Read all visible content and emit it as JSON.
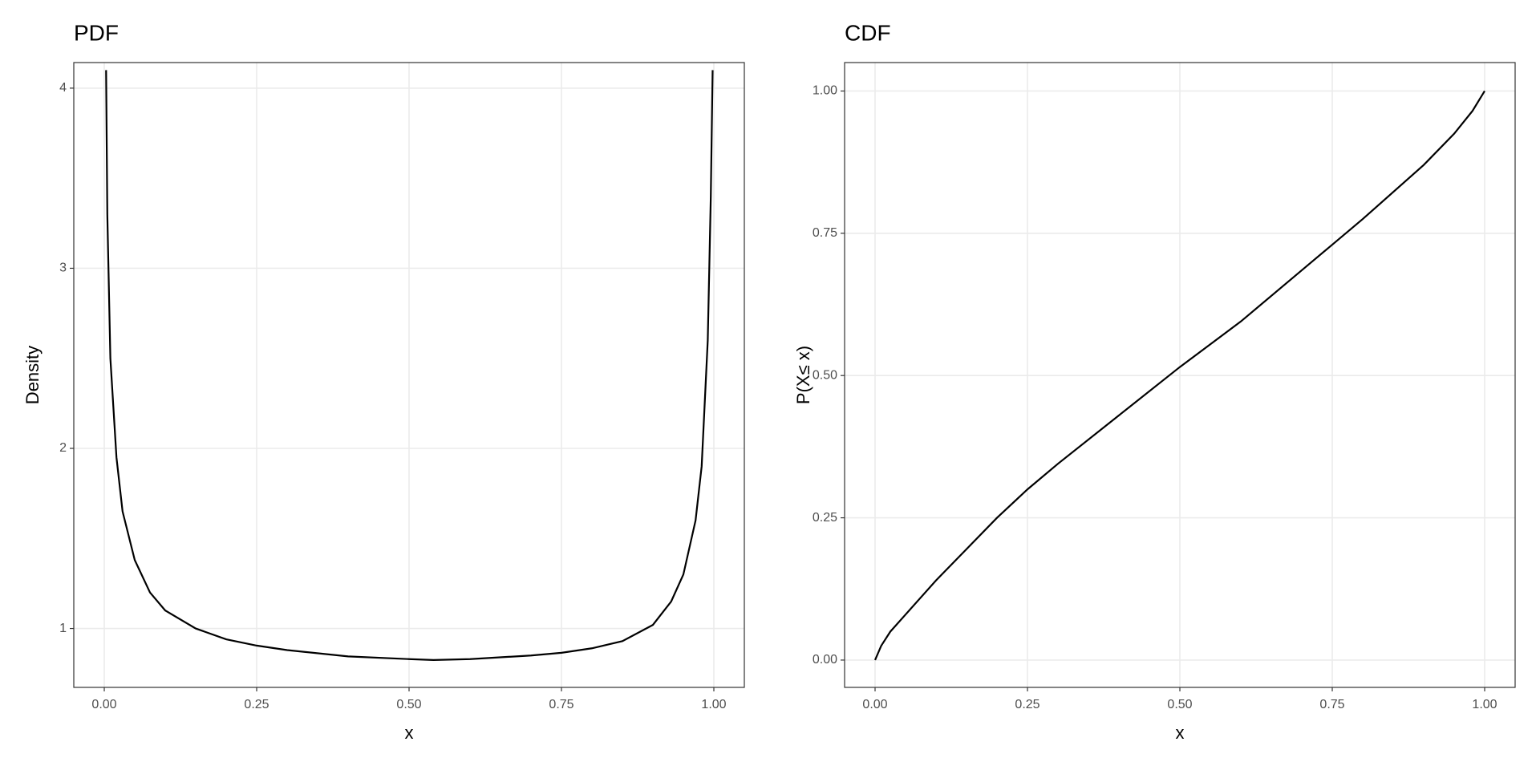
{
  "chart_data": [
    {
      "type": "line",
      "title": "PDF",
      "x_label": "x",
      "y_label": "Density",
      "xlim": [
        -0.05,
        1.05
      ],
      "ylim": [
        0.673,
        4.142
      ],
      "xticks": [
        {
          "value": 0,
          "label": "0.00"
        },
        {
          "value": 0.25,
          "label": "0.25"
        },
        {
          "value": 0.5,
          "label": "0.50"
        },
        {
          "value": 0.75,
          "label": "0.75"
        },
        {
          "value": 1,
          "label": "1.00"
        }
      ],
      "yticks": [
        1,
        2,
        3,
        4
      ],
      "grid": true,
      "color": "#000000",
      "x": [
        0.003,
        0.005,
        0.01,
        0.02,
        0.03,
        0.05,
        0.075,
        0.1,
        0.15,
        0.2,
        0.25,
        0.3,
        0.4,
        0.5,
        0.54,
        0.6,
        0.7,
        0.75,
        0.8,
        0.85,
        0.9,
        0.93,
        0.95,
        0.97,
        0.98,
        0.99,
        0.995,
        0.998
      ],
      "values": [
        4.1,
        3.3,
        2.5,
        1.95,
        1.65,
        1.38,
        1.2,
        1.1,
        1.0,
        0.94,
        0.905,
        0.88,
        0.845,
        0.83,
        0.825,
        0.83,
        0.85,
        0.865,
        0.89,
        0.93,
        1.02,
        1.15,
        1.3,
        1.6,
        1.9,
        2.6,
        3.4,
        4.1
      ]
    },
    {
      "type": "line",
      "title": "CDF",
      "x_label": "x",
      "y_label": "P(X≤ x)",
      "xlim": [
        -0.05,
        1.05
      ],
      "ylim": [
        -0.048,
        1.05
      ],
      "xticks": [
        {
          "value": 0,
          "label": "0.00"
        },
        {
          "value": 0.25,
          "label": "0.25"
        },
        {
          "value": 0.5,
          "label": "0.50"
        },
        {
          "value": 0.75,
          "label": "0.75"
        },
        {
          "value": 1,
          "label": "1.00"
        }
      ],
      "yticks": [
        {
          "value": 0,
          "label": "0.00"
        },
        {
          "value": 0.25,
          "label": "0.25"
        },
        {
          "value": 0.5,
          "label": "0.50"
        },
        {
          "value": 0.75,
          "label": "0.75"
        },
        {
          "value": 1,
          "label": "1.00"
        }
      ],
      "grid": true,
      "color": "#000000",
      "x": [
        0,
        0.01,
        0.025,
        0.05,
        0.1,
        0.15,
        0.2,
        0.25,
        0.3,
        0.4,
        0.5,
        0.6,
        0.7,
        0.75,
        0.8,
        0.9,
        0.95,
        0.98,
        1
      ],
      "values": [
        0,
        0.025,
        0.05,
        0.08,
        0.14,
        0.195,
        0.25,
        0.3,
        0.345,
        0.43,
        0.515,
        0.595,
        0.685,
        0.73,
        0.775,
        0.87,
        0.925,
        0.965,
        1
      ]
    }
  ]
}
